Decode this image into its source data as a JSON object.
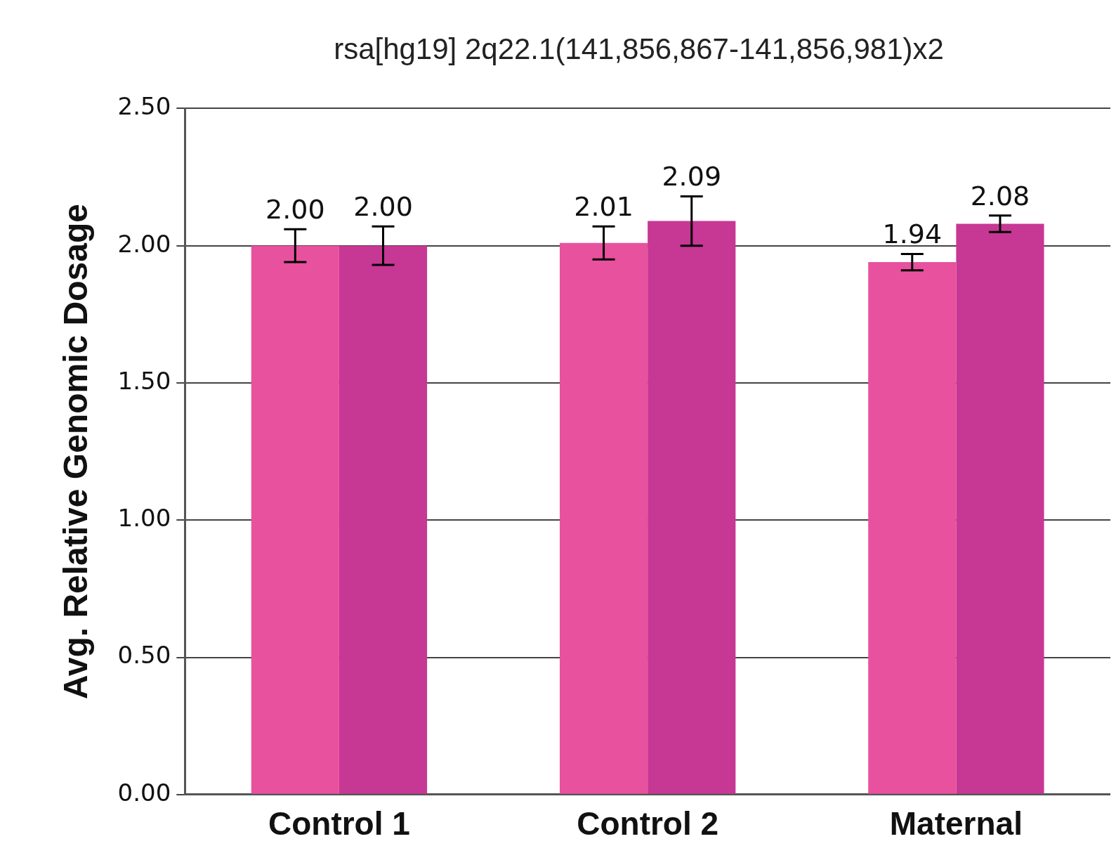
{
  "chart_data": {
    "type": "bar",
    "subtitle": "rsa[hg19] 2q22.1(141,856,867-141,856,981)x2",
    "ylabel": "Avg. Relative Genomic Dosage",
    "categories": [
      "Control 1",
      "Control 2",
      "Maternal"
    ],
    "series": [
      {
        "color": "#e8519e",
        "values": [
          2.0,
          2.01,
          1.94
        ],
        "errors": [
          0.06,
          0.06,
          0.03
        ],
        "value_labels": [
          "2.00",
          "2.01",
          "1.94"
        ]
      },
      {
        "color": "#c73794",
        "values": [
          2.0,
          2.09,
          2.08
        ],
        "errors": [
          0.07,
          0.09,
          0.03
        ],
        "value_labels": [
          "2.00",
          "2.09",
          "2.08"
        ]
      }
    ],
    "ylim": [
      0,
      2.5
    ],
    "yticks": [
      {
        "value": 0,
        "label": "0.00"
      },
      {
        "value": 0.5,
        "label": "0.50"
      },
      {
        "value": 1,
        "label": "1.00"
      },
      {
        "value": 1.5,
        "label": "1.50"
      },
      {
        "value": 2,
        "label": "2.00"
      },
      {
        "value": 2.5,
        "label": "2.50"
      }
    ],
    "grid": "y",
    "legend": false
  }
}
